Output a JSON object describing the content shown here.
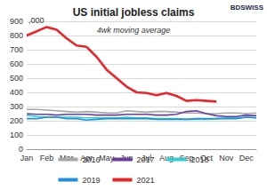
{
  "chart_data": {
    "type": "line",
    "title": "US initial jobless claims",
    "subtitle": "4wk moving average",
    "ylabel": ",000",
    "annotations": [
      "BDSWISS"
    ],
    "categories": [
      "Jan",
      null,
      "Feb",
      null,
      "Mar",
      null,
      "Apr",
      null,
      "May",
      null,
      "Jun",
      null,
      "Jul",
      null,
      "Aug",
      null,
      "Sep",
      null,
      "Oct",
      null,
      "Nov",
      null,
      "Dec",
      null
    ],
    "series": [
      {
        "name": "2016",
        "color": "#a6a6a6",
        "values": [
          280,
          280,
          275,
          270,
          265,
          260,
          265,
          260,
          255,
          255,
          270,
          265,
          260,
          265,
          265,
          260,
          255,
          255,
          250,
          250,
          255,
          255,
          250,
          255
        ]
      },
      {
        "name": "2017",
        "color": "#6a3d9a",
        "values": [
          250,
          245,
          245,
          240,
          245,
          245,
          245,
          240,
          240,
          240,
          245,
          245,
          245,
          240,
          240,
          245,
          265,
          270,
          250,
          235,
          230,
          230,
          240,
          235
        ]
      },
      {
        "name": "2018",
        "color": "#33cccc",
        "values": [
          240,
          230,
          225,
          225,
          225,
          225,
          220,
          220,
          220,
          220,
          225,
          220,
          220,
          215,
          215,
          215,
          210,
          210,
          210,
          215,
          220,
          220,
          225,
          220
        ]
      },
      {
        "name": "2019",
        "color": "#1f8fe0",
        "values": [
          215,
          215,
          225,
          225,
          215,
          215,
          205,
          210,
          215,
          215,
          215,
          215,
          215,
          210,
          210,
          210,
          210,
          215,
          215,
          215,
          215,
          215,
          225,
          220
        ]
      },
      {
        "name": "2021",
        "color": "#e8262b",
        "values": [
          800,
          830,
          860,
          840,
          780,
          730,
          720,
          650,
          560,
          500,
          440,
          400,
          395,
          380,
          395,
          375,
          340,
          345,
          340,
          335,
          null,
          null,
          null,
          null
        ]
      }
    ],
    "ylim": [
      0,
      900
    ],
    "yticks": [
      0,
      100,
      200,
      300,
      400,
      500,
      600,
      700,
      800,
      900
    ],
    "grid": true,
    "legend": "bottom"
  }
}
